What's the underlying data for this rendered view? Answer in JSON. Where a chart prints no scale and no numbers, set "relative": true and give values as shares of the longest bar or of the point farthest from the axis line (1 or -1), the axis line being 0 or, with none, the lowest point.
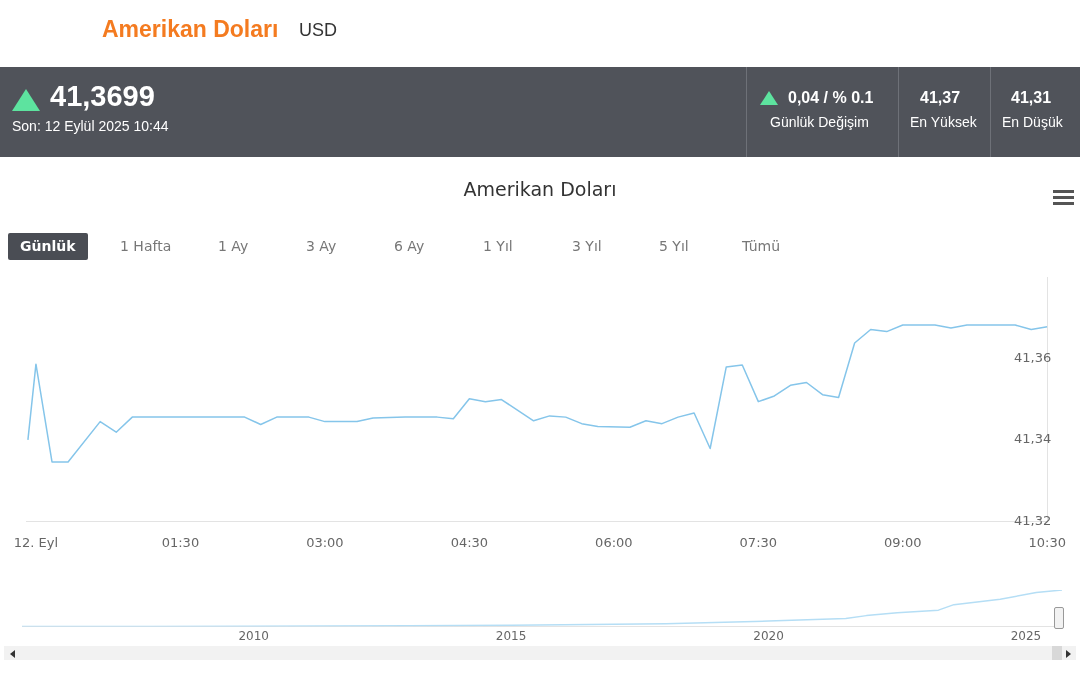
{
  "chart_data": [
    {
      "type": "line",
      "title": "Amerikan Doları",
      "x": [
        "2025-09-11T23:55",
        "2025-09-12T00:00",
        "2025-09-12T00:10",
        "2025-09-12T00:20",
        "2025-09-12T00:40",
        "2025-09-12T00:50",
        "2025-09-12T01:00",
        "2025-09-12T02:10",
        "2025-09-12T02:20",
        "2025-09-12T02:30",
        "2025-09-12T02:50",
        "2025-09-12T03:00",
        "2025-09-12T03:20",
        "2025-09-12T03:30",
        "2025-09-12T03:50",
        "2025-09-12T04:10",
        "2025-09-12T04:20",
        "2025-09-12T04:30",
        "2025-09-12T04:40",
        "2025-09-12T04:50",
        "2025-09-12T05:10",
        "2025-09-12T05:20",
        "2025-09-12T05:30",
        "2025-09-12T05:40",
        "2025-09-12T05:50",
        "2025-09-12T06:10",
        "2025-09-12T06:20",
        "2025-09-12T06:30",
        "2025-09-12T06:40",
        "2025-09-12T06:50",
        "2025-09-12T07:00",
        "2025-09-12T07:10",
        "2025-09-12T07:20",
        "2025-09-12T07:30",
        "2025-09-12T07:40",
        "2025-09-12T07:50",
        "2025-09-12T08:00",
        "2025-09-12T08:10",
        "2025-09-12T08:20",
        "2025-09-12T08:30",
        "2025-09-12T08:40",
        "2025-09-12T08:50",
        "2025-09-12T09:00",
        "2025-09-12T09:20",
        "2025-09-12T09:30",
        "2025-09-12T09:40",
        "2025-09-12T10:10",
        "2025-09-12T10:20",
        "2025-09-12T10:30"
      ],
      "series": [
        {
          "color": "#85c5ea",
          "values": [
            41.34,
            41.3586,
            41.3346,
            41.3346,
            41.3445,
            41.3419,
            41.3456,
            41.3456,
            41.3438,
            41.3456,
            41.3456,
            41.3445,
            41.3445,
            41.3454,
            41.3456,
            41.3456,
            41.3452,
            41.3501,
            41.3494,
            41.3499,
            41.3447,
            41.3459,
            41.3456,
            41.344,
            41.3433,
            41.3431,
            41.3447,
            41.344,
            41.3456,
            41.3466,
            41.3379,
            41.3579,
            41.3584,
            41.3494,
            41.3508,
            41.3534,
            41.3541,
            41.3511,
            41.3504,
            41.3638,
            41.3671,
            41.3666,
            41.3682,
            41.3682,
            41.3675,
            41.3682,
            41.3682,
            41.3671,
            41.3678
          ]
        }
      ],
      "xlim": [
        "2025-09-11T23:54",
        "2025-09-12T10:30"
      ],
      "xticks": [
        {
          "value": "2025-09-12T00:00",
          "label": "12. Eyl"
        },
        {
          "value": "2025-09-12T01:30",
          "label": "01:30"
        },
        {
          "value": "2025-09-12T03:00",
          "label": "03:00"
        },
        {
          "value": "2025-09-12T04:30",
          "label": "04:30"
        },
        {
          "value": "2025-09-12T06:00",
          "label": "06:00"
        },
        {
          "value": "2025-09-12T07:30",
          "label": "07:30"
        },
        {
          "value": "2025-09-12T09:00",
          "label": "09:00"
        },
        {
          "value": "2025-09-12T10:30",
          "label": "10:30"
        }
      ],
      "ylim": [
        41.32,
        41.38
      ],
      "yticks": [
        {
          "value": 41.32,
          "label": "41,32"
        },
        {
          "value": 41.34,
          "label": "41,34"
        },
        {
          "value": 41.36,
          "label": "41,36"
        }
      ],
      "grid": false,
      "legend": false,
      "marker": "none",
      "line_style": "solid",
      "annotations": [
        "Amerikan Doları",
        "USD",
        "41,3699",
        "Son: 12 Eylül 2025 10:44",
        "0,04 / % 0.1",
        "Günlük Değişim",
        "41,37",
        "En Yüksek",
        "41,31",
        "En Düşük",
        "Günlük",
        "1 Hafta",
        "1 Ay",
        "3 Ay",
        "6 Ay",
        "1 Yıl",
        "3 Yıl",
        "5 Yıl",
        "Tümü"
      ]
    },
    {
      "type": "line",
      "relative": true,
      "x": [
        2005.5,
        2008,
        2010,
        2013,
        2015,
        2018,
        2020,
        2021.5,
        2021.9,
        2022.5,
        2023.3,
        2023.6,
        2024.5,
        2025.2,
        2025.7
      ],
      "series": [
        {
          "color": "#b5def5",
          "values": [
            0,
            0.005,
            0.01,
            0.02,
            0.04,
            0.08,
            0.15,
            0.22,
            0.3,
            0.38,
            0.45,
            0.6,
            0.75,
            0.93,
            1
          ]
        }
      ],
      "xlim": [
        2005.5,
        2025.7
      ],
      "xticks": [
        2010,
        2015,
        2020,
        2025
      ],
      "grid": false,
      "legend": false,
      "marker": "none"
    }
  ]
}
